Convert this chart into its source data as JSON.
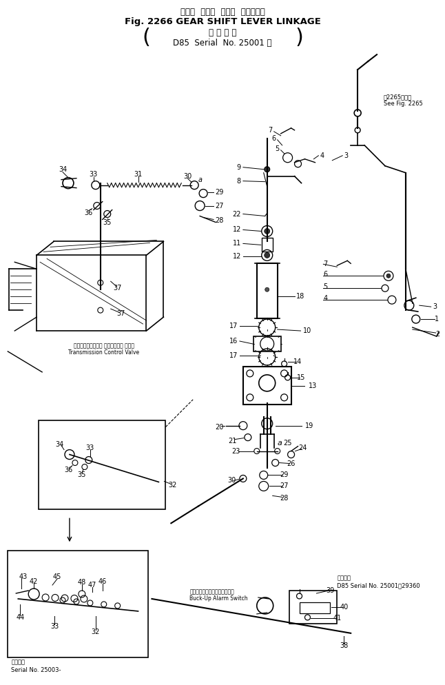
{
  "title_line1": "ギヤー  シフト  レバー  リンケージ",
  "title_line2": "Fig. 2266 GEAR SHIFT LEVER LINKAGE",
  "title_line3": "適 用 号 機",
  "title_line4": "D85  Serial  No. 25001 ～",
  "bg_color": "#ffffff",
  "fig_width": 6.46,
  "fig_height": 9.94,
  "note_top_right1": "図2265図参照",
  "note_top_right2": "See Fig. 2265",
  "note_bottom_left1": "トランスミッション コントロール バルブ",
  "note_bottom_left2": "Transmission Control Valve",
  "note_backup1": "バックアップアラームスイッチ",
  "note_backup2": "Buck-Up Alarm Switch",
  "note_serial_label": "適用号機",
  "note_serial1": "D85 Serial No. 25001～29360",
  "note_bottom_serial1": "適用号機",
  "note_bottom_serial2": "Serial No. 25003-",
  "line_color": "#000000",
  "text_color": "#000000"
}
